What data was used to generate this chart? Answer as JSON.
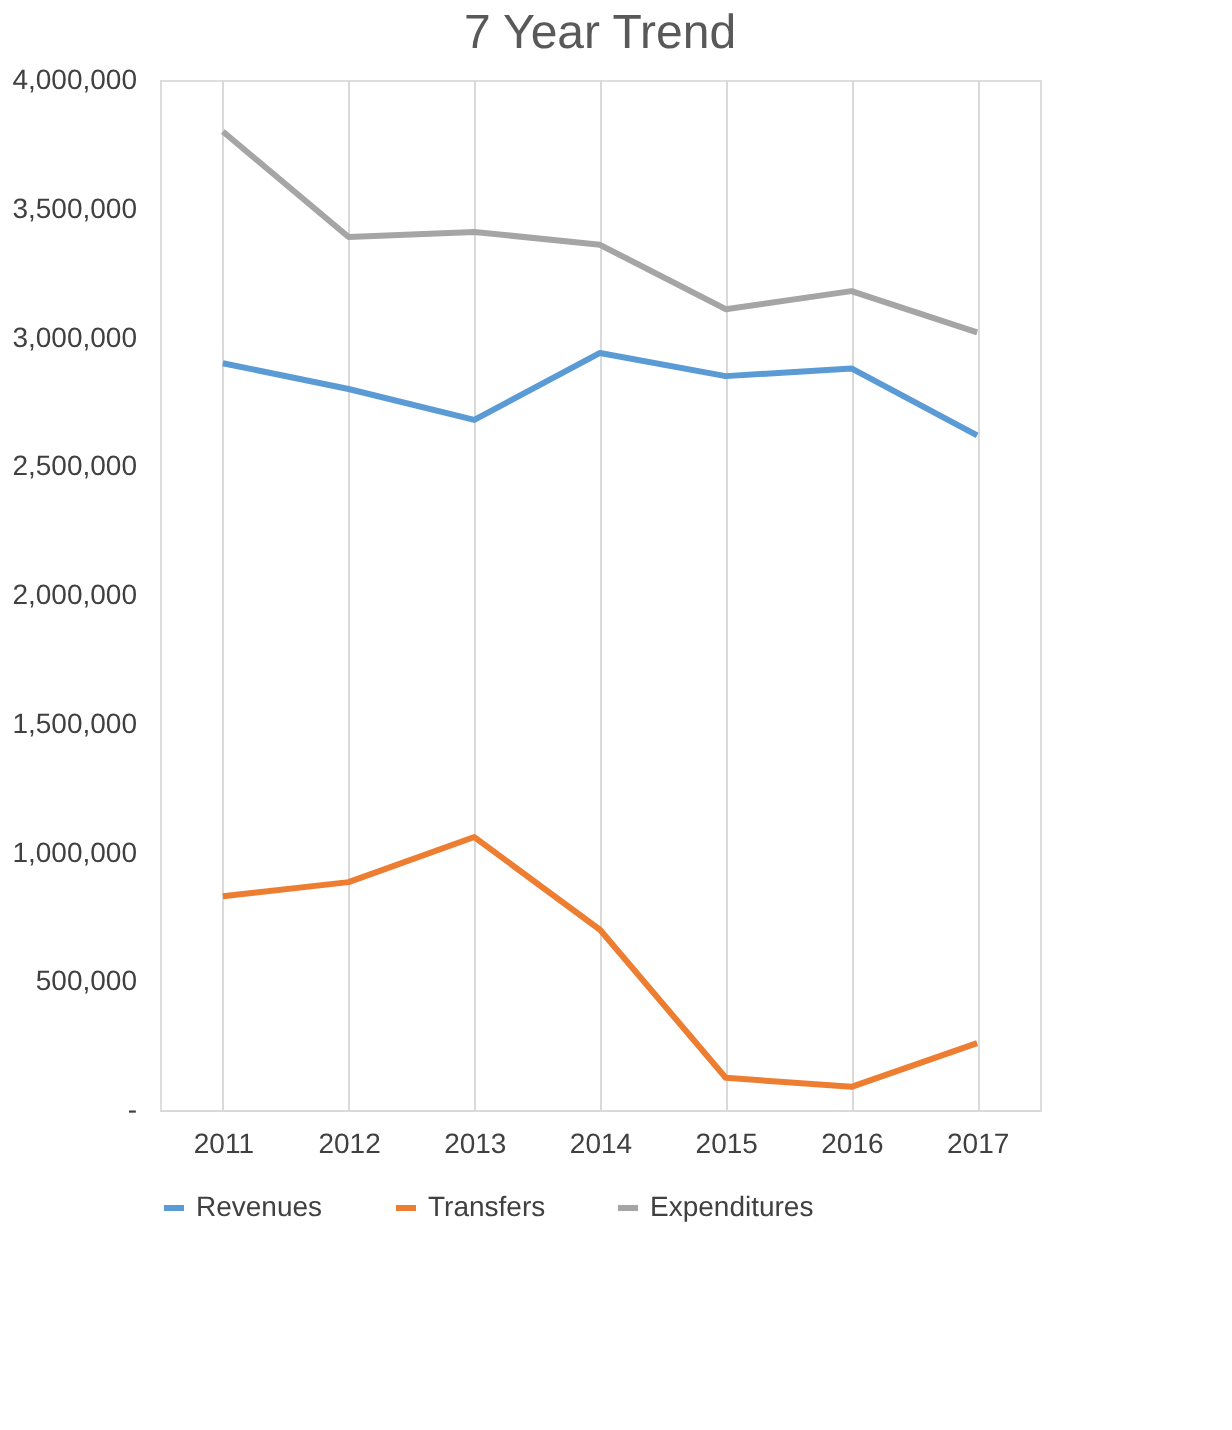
{
  "chart_data": {
    "type": "line",
    "title": "7 Year Trend",
    "categories": [
      "2011",
      "2012",
      "2013",
      "2014",
      "2015",
      "2016",
      "2017"
    ],
    "series": [
      {
        "name": "Revenues",
        "color": "#5b9bd5",
        "values": [
          2900000,
          2800000,
          2680000,
          2940000,
          2850000,
          2880000,
          2620000
        ]
      },
      {
        "name": "Transfers",
        "color": "#ed7d31",
        "values": [
          830000,
          885000,
          1060000,
          700000,
          125000,
          90000,
          260000
        ]
      },
      {
        "name": "Expenditures",
        "color": "#a5a5a5",
        "values": [
          3800000,
          3390000,
          3410000,
          3360000,
          3110000,
          3180000,
          3020000
        ]
      }
    ],
    "ylim": [
      0,
      4000000
    ],
    "yticks": [
      {
        "value": 0,
        "label": "-"
      },
      {
        "value": 500000,
        "label": "500,000"
      },
      {
        "value": 1000000,
        "label": "1,000,000"
      },
      {
        "value": 1500000,
        "label": "1,500,000"
      },
      {
        "value": 2000000,
        "label": "2,000,000"
      },
      {
        "value": 2500000,
        "label": "2,500,000"
      },
      {
        "value": 3000000,
        "label": "3,000,000"
      },
      {
        "value": 3500000,
        "label": "3,500,000"
      },
      {
        "value": 4000000,
        "label": "4,000,000"
      }
    ],
    "grid": "x",
    "legend": "bottom",
    "marker": "none",
    "line_style": "solid"
  }
}
